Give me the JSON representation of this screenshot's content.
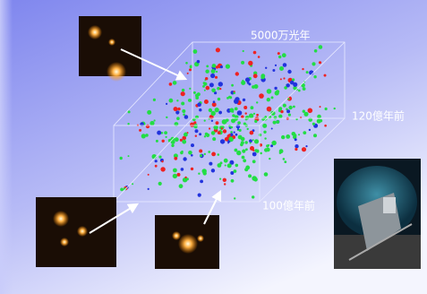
{
  "labels": {
    "width": "5000万光年",
    "far_edge": "120億年前",
    "near_edge": "100億年前"
  }
}
